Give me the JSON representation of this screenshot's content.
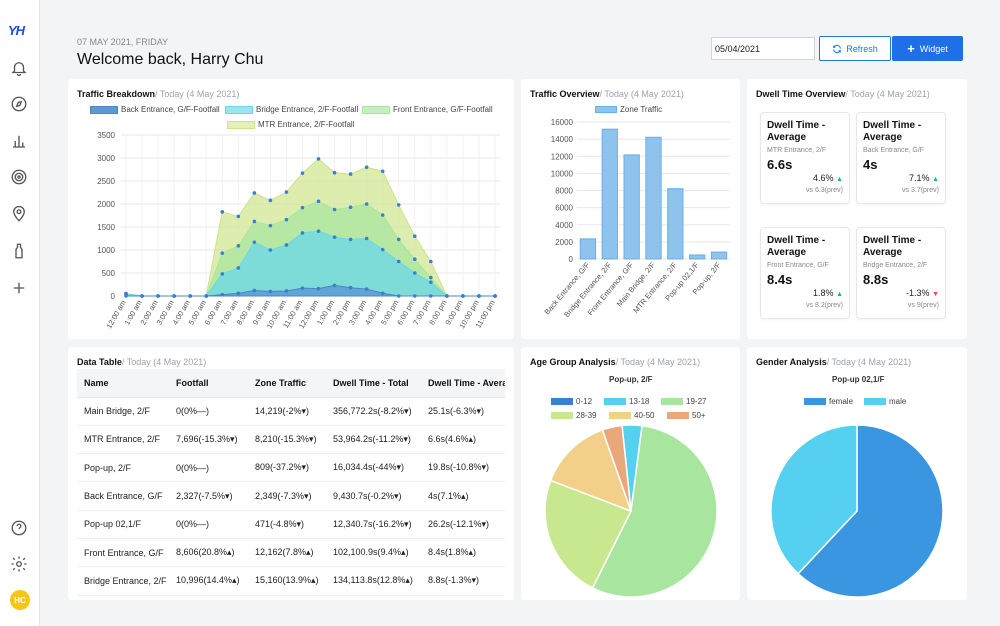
{
  "app": {
    "logo": "YH",
    "avatar_initials": "HC"
  },
  "header": {
    "date_line": "07 MAY 2021, FRIDAY",
    "welcome": "Welcome back, Harry Chu",
    "date_value": "05/04/2021",
    "refresh_label": "Refresh",
    "widget_label": "Widget"
  },
  "traffic_breakdown": {
    "title": "Traffic Breakdown",
    "subtitle": "/ Today (4 May 2021)",
    "legend": [
      "Back Entrance, G/F-Footfall",
      "Bridge Entrance, 2/F-Footfall",
      "Front Entrance, G/F-Footfall",
      "MTR Entrance, 2/F-Footfall"
    ]
  },
  "traffic_overview": {
    "title": "Traffic Overview",
    "subtitle": "/ Today (4 May 2021)",
    "legend": "Zone Traffic"
  },
  "dwell": {
    "title": "Dwell Time Overview",
    "subtitle": "/ Today (4 May 2021)",
    "boxes": [
      {
        "title": "Dwell Time - Average",
        "location": "MTR Entrance, 2/F",
        "value": "6.6s",
        "change": "4.6%",
        "dir": "up",
        "prev": "vs 6.3(prev)"
      },
      {
        "title": "Dwell Time - Average",
        "location": "Back Entrance, G/F",
        "value": "4s",
        "change": "7.1%",
        "dir": "up",
        "prev": "vs 3.7(prev)"
      },
      {
        "title": "Dwell Time - Average",
        "location": "Front Entrance, G/F",
        "value": "8.4s",
        "change": "1.8%",
        "dir": "up",
        "prev": "vs 8.2(prev)"
      },
      {
        "title": "Dwell Time - Average",
        "location": "Bridge Entrance, 2/F",
        "value": "8.8s",
        "change": "-1.3%",
        "dir": "down",
        "prev": "vs 9(prev)"
      }
    ]
  },
  "data_table": {
    "title": "Data Table",
    "subtitle": "/ Today (4 May 2021)",
    "headers": [
      "Name",
      "Footfall",
      "Zone Traffic",
      "Dwell Time - Total",
      "Dwell Time - Avera"
    ],
    "rows": [
      [
        "Main Bridge, 2/F",
        "0(0%—)",
        "14,219(-2%▾)",
        "356,772.2s(-8.2%▾)",
        "25.1s(-6.3%▾)"
      ],
      [
        "MTR Entrance, 2/F",
        "7,696(-15.3%▾)",
        "8,210(-15.3%▾)",
        "53,964.2s(-11.2%▾)",
        "6.6s(4.6%▴)"
      ],
      [
        "Pop-up, 2/F",
        "0(0%—)",
        "809(-37.2%▾)",
        "16,034.4s(-44%▾)",
        "19.8s(-10.8%▾)"
      ],
      [
        "Back Entrance, G/F",
        "2,327(-7.5%▾)",
        "2,349(-7.3%▾)",
        "9,430.7s(-0.2%▾)",
        "4s(7.1%▴)"
      ],
      [
        "Pop-up 02,1/F",
        "0(0%—)",
        "471(-4.8%▾)",
        "12,340.7s(-16.2%▾)",
        "26.2s(-12.1%▾)"
      ],
      [
        "Front Entrance, G/F",
        "8,606(20.8%▴)",
        "12,162(7.8%▴)",
        "102,100.9s(9.4%▴)",
        "8.4s(1.8%▴)"
      ],
      [
        "Bridge Entrance, 2/F",
        "10,996(14.4%▴)",
        "15,160(13.9%▴)",
        "134,113.8s(12.8%▴)",
        "8.8s(-1.3%▾)"
      ]
    ]
  },
  "age_group": {
    "title": "Age Group Analysis",
    "subtitle": "/ Today (4 May 2021)",
    "chart_title": "Pop-up, 2/F"
  },
  "gender": {
    "title": "Gender Analysis",
    "subtitle": "/ Today (4 May 2021)",
    "chart_title": "Pop-up 02,1/F"
  },
  "colors": {
    "back": "#5b9bd5",
    "bridge": "#6ad8e8",
    "front": "#a8e6a0",
    "mtr": "#d5e89a",
    "bar": "#8ec3ee",
    "female": "#3a96e0",
    "male": "#56d0f0"
  },
  "chart_data": [
    {
      "type": "area",
      "title": "Traffic Breakdown",
      "x": [
        "12:00 am",
        "1:00 am",
        "2:00 am",
        "3:00 am",
        "4:00 am",
        "5:00 am",
        "6:00 am",
        "7:00 am",
        "8:00 am",
        "9:00 am",
        "10:00 am",
        "11:00 am",
        "12:00 pm",
        "1:00 pm",
        "2:00 pm",
        "3:00 pm",
        "4:00 pm",
        "5:00 pm",
        "6:00 pm",
        "7:00 pm",
        "8:00 pm",
        "9:00 pm",
        "10:00 pm",
        "11:00 pm"
      ],
      "stacked": true,
      "ylim": [
        0,
        3500
      ],
      "series": [
        {
          "name": "Back Entrance, G/F-Footfall",
          "values": [
            0,
            0,
            0,
            0,
            0,
            0,
            30,
            60,
            120,
            100,
            110,
            170,
            160,
            230,
            180,
            150,
            60,
            0,
            0,
            0,
            0,
            0,
            0,
            0
          ]
        },
        {
          "name": "Bridge Entrance, 2/F-Footfall",
          "values": [
            50,
            0,
            0,
            0,
            0,
            0,
            450,
            550,
            1050,
            900,
            1000,
            1200,
            1250,
            1050,
            1050,
            1100,
            950,
            750,
            500,
            300,
            0,
            0,
            0,
            0
          ]
        },
        {
          "name": "Front Entrance, G/F-Footfall",
          "values": [
            0,
            0,
            0,
            0,
            0,
            0,
            450,
            480,
            450,
            530,
            550,
            550,
            650,
            600,
            700,
            750,
            750,
            480,
            300,
            100,
            0,
            0,
            0,
            0
          ]
        },
        {
          "name": "MTR Entrance, 2/F-Footfall",
          "values": [
            0,
            0,
            0,
            0,
            0,
            0,
            900,
            640,
            620,
            550,
            600,
            750,
            920,
            800,
            720,
            800,
            950,
            750,
            500,
            350,
            0,
            0,
            0,
            0
          ]
        }
      ]
    },
    {
      "type": "bar",
      "title": "Traffic Overview",
      "categories": [
        "Back Entrance, G/F",
        "Bridge Entrance, 2/F",
        "Front Entrance, G/F",
        "Main Bridge, 2/F",
        "MTR Entrance, 2/F",
        "Pop-up 02,1/F",
        "Pop-up, 2/F"
      ],
      "series": [
        {
          "name": "Zone Traffic",
          "values": [
            2349,
            15160,
            12162,
            14219,
            8210,
            471,
            809
          ]
        }
      ],
      "ylim": [
        0,
        16000
      ]
    },
    {
      "type": "pie",
      "title": "Pop-up, 2/F",
      "labels": [
        "0-12",
        "13-18",
        "19-27",
        "28-39",
        "40-50",
        "50+"
      ],
      "values": [
        0,
        3.5,
        52,
        22,
        13,
        3.5
      ],
      "colors": [
        "#3a80d0",
        "#56d0f0",
        "#a8e6a0",
        "#c8e890",
        "#f2d08a",
        "#e8a87c"
      ]
    },
    {
      "type": "pie",
      "title": "Pop-up 02,1/F",
      "labels": [
        "female",
        "male"
      ],
      "values": [
        62,
        38
      ],
      "colors": [
        "#3a96e0",
        "#56d0f0"
      ]
    }
  ]
}
